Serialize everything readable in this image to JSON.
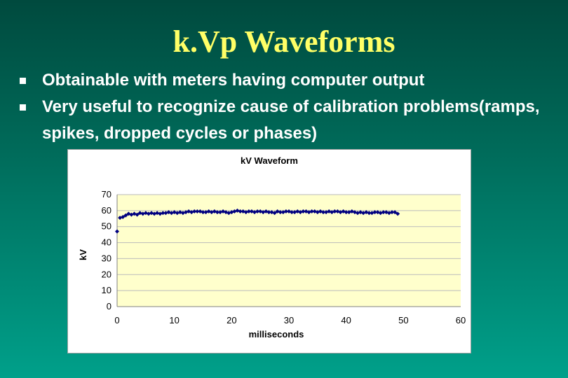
{
  "slide": {
    "title": "k.Vp Waveforms",
    "bullets": [
      "Obtainable with meters having computer output",
      "Very useful to recognize cause of calibration problems(ramps, spikes, dropped cycles or phases)"
    ]
  },
  "colors": {
    "title": "#ffff66",
    "plot_background": "#ffffcc",
    "series": "#000080"
  },
  "chart_data": {
    "type": "scatter",
    "title": "kV Waveform",
    "xlabel": "milliseconds",
    "ylabel": "kV",
    "xlim": [
      0,
      60
    ],
    "ylim": [
      0,
      70
    ],
    "xticks": [
      0,
      10,
      20,
      30,
      40,
      50,
      60
    ],
    "yticks": [
      0,
      10,
      20,
      30,
      40,
      50,
      60,
      70
    ],
    "grid": "horizontal",
    "legend": "none",
    "series": [
      {
        "marker": "diamond",
        "connected": true,
        "x": [
          0.0,
          0.5,
          1.0,
          1.5,
          2.0,
          2.5,
          3.0,
          3.5,
          4.0,
          4.5,
          5.0,
          5.5,
          6.0,
          6.5,
          7.0,
          7.5,
          8.0,
          8.5,
          9.0,
          9.5,
          10.0,
          10.5,
          11.0,
          11.5,
          12.0,
          12.5,
          13.0,
          13.5,
          14.0,
          14.5,
          15.0,
          15.5,
          16.0,
          16.5,
          17.0,
          17.5,
          18.0,
          18.5,
          19.0,
          19.5,
          20.0,
          20.5,
          21.0,
          21.5,
          22.0,
          22.5,
          23.0,
          23.5,
          24.0,
          24.5,
          25.0,
          25.5,
          26.0,
          26.5,
          27.0,
          27.5,
          28.0,
          28.5,
          29.0,
          29.5,
          30.0,
          30.5,
          31.0,
          31.5,
          32.0,
          32.5,
          33.0,
          33.5,
          34.0,
          34.5,
          35.0,
          35.5,
          36.0,
          36.5,
          37.0,
          37.5,
          38.0,
          38.5,
          39.0,
          39.5,
          40.0,
          40.5,
          41.0,
          41.5,
          42.0,
          42.5,
          43.0,
          43.5,
          44.0,
          44.5,
          45.0,
          45.5,
          46.0,
          46.5,
          47.0,
          47.5,
          48.0,
          48.5,
          49.0
        ],
        "values": [
          47.0,
          55.5,
          56.0,
          57.0,
          58.0,
          57.5,
          58.0,
          57.5,
          58.5,
          58.0,
          58.5,
          58.0,
          58.5,
          58.0,
          58.5,
          58.0,
          58.5,
          58.5,
          59.0,
          58.5,
          59.0,
          58.5,
          59.0,
          58.5,
          59.0,
          59.5,
          59.0,
          59.5,
          59.5,
          59.5,
          59.0,
          59.0,
          59.5,
          59.0,
          59.5,
          59.0,
          59.0,
          59.5,
          59.0,
          58.5,
          59.0,
          59.5,
          60.0,
          59.5,
          59.5,
          59.0,
          59.5,
          59.5,
          59.0,
          59.5,
          59.5,
          59.0,
          59.5,
          59.0,
          59.0,
          58.5,
          59.5,
          59.0,
          59.0,
          59.5,
          59.5,
          59.0,
          59.0,
          59.5,
          59.0,
          59.5,
          59.5,
          59.0,
          59.5,
          59.5,
          59.0,
          59.5,
          59.0,
          59.0,
          59.5,
          59.0,
          59.5,
          59.5,
          59.0,
          59.5,
          59.0,
          59.0,
          59.5,
          59.0,
          58.5,
          59.0,
          58.5,
          59.0,
          58.5,
          58.5,
          59.0,
          59.0,
          58.5,
          59.0,
          59.0,
          58.5,
          59.0,
          59.0,
          58.0
        ]
      }
    ]
  }
}
